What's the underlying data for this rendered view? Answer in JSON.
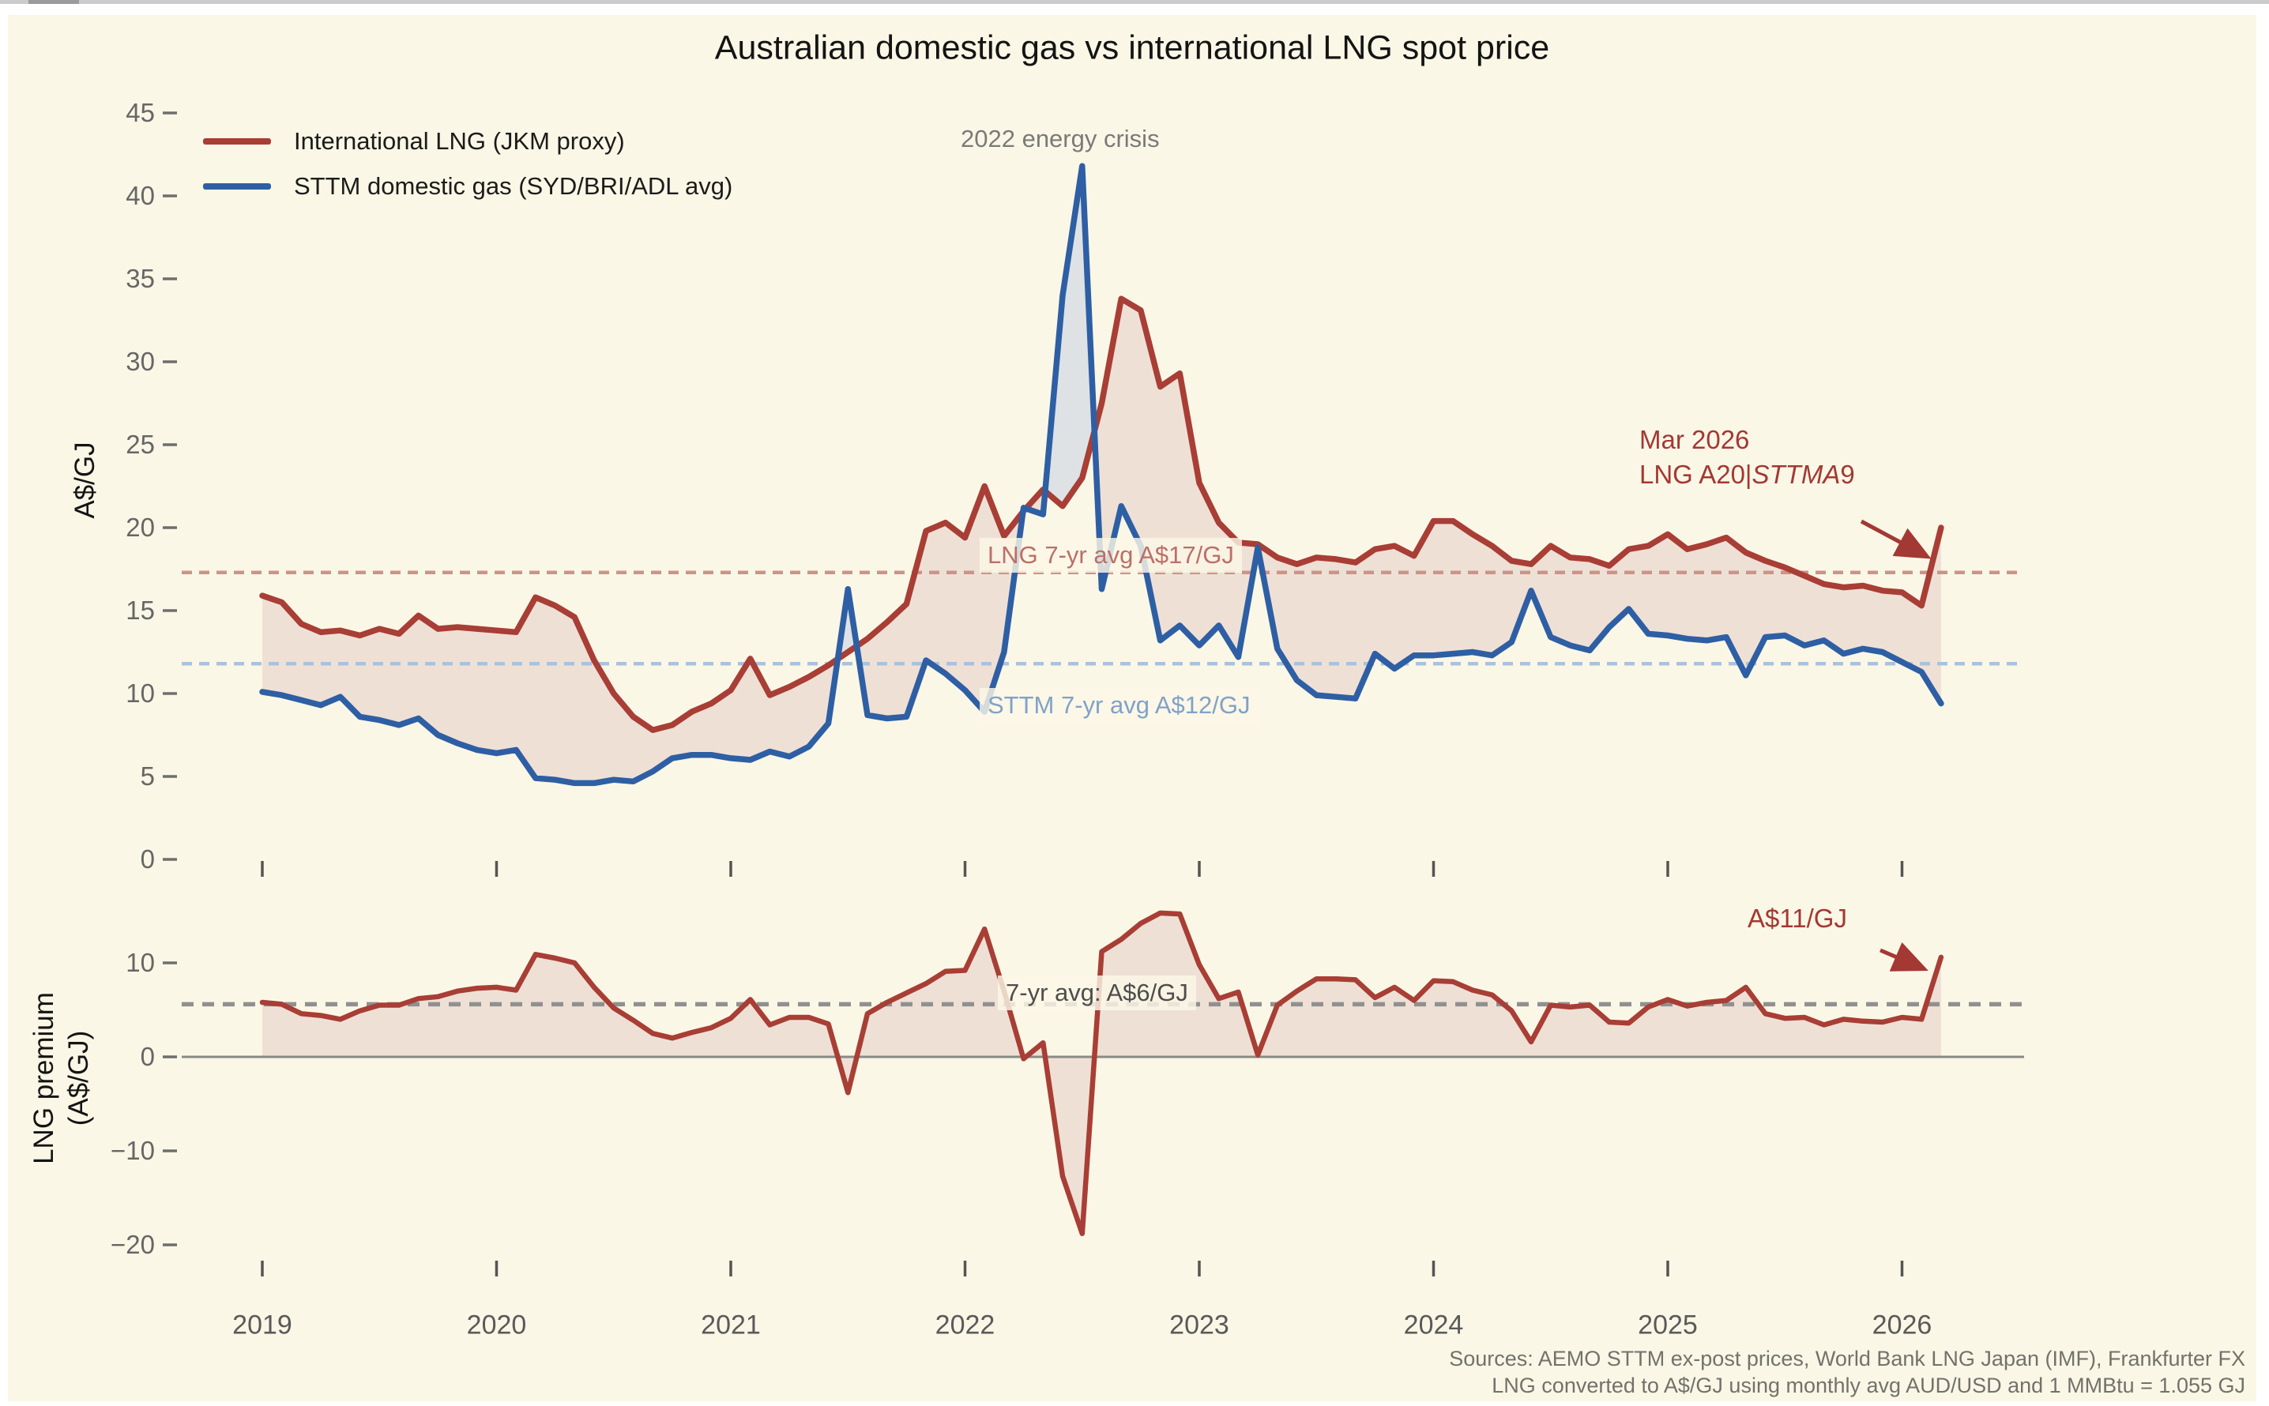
{
  "title": "Australian domestic gas vs international LNG spot price",
  "legend": {
    "items": [
      {
        "label": "International LNG (JKM proxy)",
        "color": "#A83E35"
      },
      {
        "label": "STTM domestic gas (SYD/BRI/ADL avg)",
        "color": "#2E5FA4"
      }
    ]
  },
  "top_panel": {
    "ylabel": "A$/GJ",
    "yticks": [
      45,
      40,
      35,
      30,
      25,
      20,
      15,
      10,
      5,
      0
    ],
    "crisis_label": "2022 energy crisis",
    "lng_avg_label": "LNG 7-yr avg A$17/GJ",
    "lng_avg_value": 17.3,
    "sttm_avg_label": "STTM 7-yr avg A$12/GJ",
    "sttm_avg_value": 11.8,
    "endpoint_annotation": {
      "line1": "Mar 2026",
      "line2_parts": [
        "LNG A20|",
        "STTMA",
        "9"
      ]
    }
  },
  "bottom_panel": {
    "ylabel_line1": "LNG premium",
    "ylabel_line2": "(A$/GJ)",
    "yticks": [
      10,
      0,
      -10,
      -20
    ],
    "avg_label": "7-yr avg: A$6/GJ",
    "avg_value": 5.6,
    "endpoint_annotation": "A$11/GJ"
  },
  "x_axis": {
    "years": [
      2019,
      2020,
      2021,
      2022,
      2023,
      2024,
      2025,
      2026
    ]
  },
  "footer": {
    "line1": "Sources: AEMO STTM ex-post prices, World Bank LNG Japan (IMF), Frankfurter FX",
    "line2": "LNG converted to A$/GJ using monthly avg AUD/USD and 1 MMBtu = 1.055 GJ"
  },
  "colors": {
    "page": "#FFFFFF",
    "figure_background": "#FBF7E6",
    "lng_line": "#A83E35",
    "sttm_line": "#2E5FA4",
    "fill_lng_above": "#EFE0D6",
    "fill_sttm_above": "#DEE2E5",
    "lng_avg_dash": "#CE9289",
    "sttm_avg_dash": "#A9C2DD",
    "premium_avg_dash": "#909090",
    "zero_line": "#8A8A85",
    "tick_color": "#6E6E6E",
    "annotation_red": "#A43833"
  },
  "chart_data": {
    "type": "line",
    "frequency": "monthly",
    "start": "2019-01",
    "end": "2026-03",
    "title": "Australian domestic gas vs international LNG spot price",
    "top_ylabel": "A$/GJ",
    "bottom_ylabel": "LNG premium (A$/GJ)",
    "top_ylim": [
      0,
      45
    ],
    "bottom_ylim": [
      -21.5,
      15.5
    ],
    "x_range_years": [
      2019.0,
      2026.1667
    ],
    "grid": false,
    "legend_position": "upper-left",
    "series": [
      {
        "name": "International LNG (JKM proxy)",
        "panel": "top",
        "color": "#A83E35",
        "values": [
          15.9,
          15.5,
          14.2,
          13.7,
          13.8,
          13.5,
          13.9,
          13.6,
          14.7,
          13.9,
          14.0,
          13.9,
          13.8,
          13.7,
          15.8,
          15.3,
          14.6,
          12.0,
          10.0,
          8.6,
          7.8,
          8.1,
          8.9,
          9.4,
          10.2,
          12.1,
          9.9,
          10.4,
          11.0,
          11.7,
          12.5,
          13.3,
          14.3,
          15.4,
          19.8,
          20.3,
          19.4,
          22.5,
          19.5,
          21.0,
          22.3,
          21.3,
          23.0,
          27.5,
          33.8,
          33.1,
          28.5,
          29.3,
          22.7,
          20.3,
          19.1,
          19.0,
          18.2,
          17.8,
          18.2,
          18.1,
          17.9,
          18.7,
          18.9,
          18.3,
          20.4,
          20.4,
          19.6,
          18.9,
          18.0,
          17.8,
          18.9,
          18.2,
          18.1,
          17.7,
          18.7,
          18.9,
          19.6,
          18.7,
          19.0,
          19.4,
          18.5,
          18.0,
          17.6,
          17.1,
          16.6,
          16.4,
          16.5,
          16.2,
          16.1,
          15.3,
          20.0
        ]
      },
      {
        "name": "STTM domestic gas (SYD/BRI/ADL avg)",
        "panel": "top",
        "color": "#2E5FA4",
        "values": [
          10.1,
          9.9,
          9.6,
          9.3,
          9.8,
          8.6,
          8.4,
          8.1,
          8.5,
          7.5,
          7.0,
          6.6,
          6.4,
          6.6,
          4.9,
          4.8,
          4.6,
          4.6,
          4.8,
          4.7,
          5.3,
          6.1,
          6.3,
          6.3,
          6.1,
          6.0,
          6.5,
          6.2,
          6.8,
          8.2,
          16.3,
          8.7,
          8.5,
          8.6,
          12.0,
          11.2,
          10.2,
          8.9,
          12.5,
          21.2,
          20.8,
          34.0,
          41.8,
          16.3,
          21.3,
          18.9,
          13.2,
          14.1,
          12.9,
          14.1,
          12.2,
          18.8,
          12.7,
          10.8,
          9.9,
          9.8,
          9.7,
          12.4,
          11.5,
          12.3,
          12.3,
          12.4,
          12.5,
          12.3,
          13.1,
          16.2,
          13.4,
          12.9,
          12.6,
          14.0,
          15.1,
          13.6,
          13.5,
          13.3,
          13.2,
          13.4,
          11.1,
          13.4,
          13.5,
          12.9,
          13.2,
          12.4,
          12.7,
          12.5,
          11.9,
          11.3,
          9.4
        ]
      },
      {
        "name": "LNG premium (LNG minus STTM)",
        "panel": "bottom",
        "color": "#A83E35",
        "values": [
          5.8,
          5.6,
          4.6,
          4.4,
          4.0,
          4.9,
          5.5,
          5.5,
          6.2,
          6.4,
          7.0,
          7.3,
          7.4,
          7.1,
          10.9,
          10.5,
          10.0,
          7.4,
          5.2,
          3.9,
          2.5,
          2.0,
          2.6,
          3.1,
          4.1,
          6.1,
          3.4,
          4.2,
          4.2,
          3.5,
          -3.8,
          4.6,
          5.8,
          6.8,
          7.8,
          9.1,
          9.2,
          13.6,
          7.0,
          -0.2,
          1.5,
          -12.7,
          -18.8,
          11.2,
          12.5,
          14.2,
          15.3,
          15.2,
          9.8,
          6.2,
          6.9,
          0.2,
          5.5,
          7.0,
          8.3,
          8.3,
          8.2,
          6.3,
          7.4,
          6.0,
          8.1,
          8.0,
          7.1,
          6.6,
          4.9,
          1.6,
          5.5,
          5.3,
          5.5,
          3.7,
          3.6,
          5.3,
          6.1,
          5.4,
          5.8,
          6.0,
          7.4,
          4.6,
          4.1,
          4.2,
          3.4,
          4.0,
          3.8,
          3.7,
          4.2,
          4.0,
          10.6
        ]
      }
    ],
    "reference_lines": [
      {
        "panel": "top",
        "value": 17.3,
        "label": "LNG 7-yr avg A$17/GJ"
      },
      {
        "panel": "top",
        "value": 11.8,
        "label": "STTM 7-yr avg A$12/GJ"
      },
      {
        "panel": "bottom",
        "value": 5.6,
        "label": "7-yr avg: A$6/GJ"
      },
      {
        "panel": "bottom",
        "value": 0.0,
        "label": "zero line"
      }
    ]
  }
}
